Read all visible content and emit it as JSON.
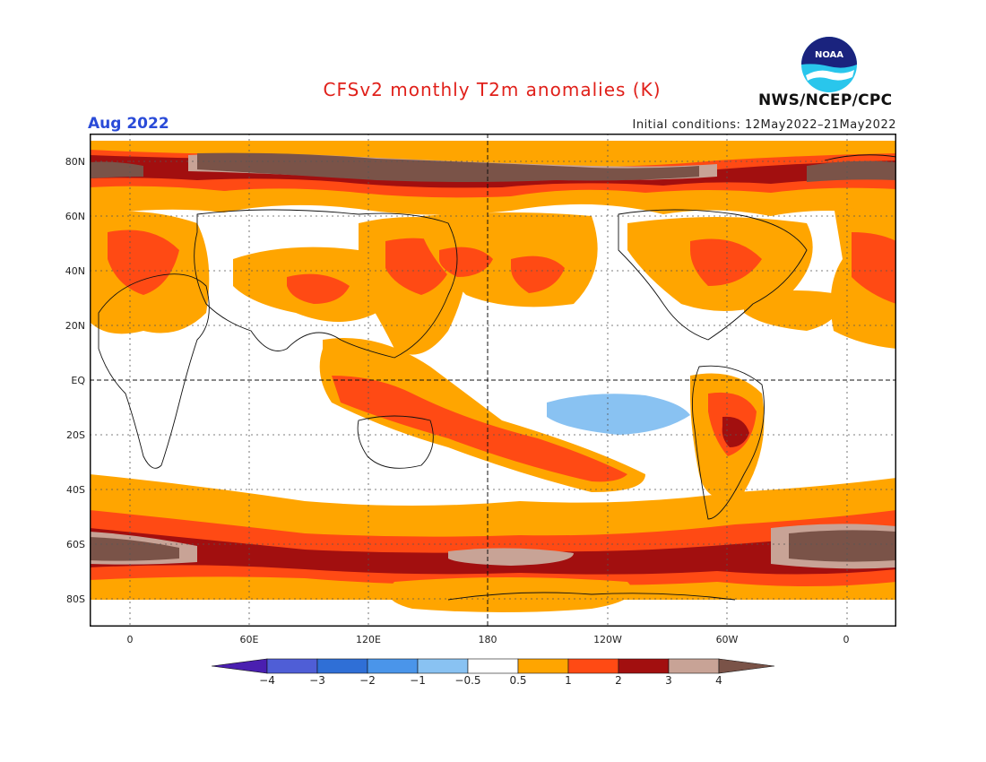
{
  "title": "CFSv2 monthly T2m anomalies (K)",
  "valid_month": "Aug 2022",
  "initial_conditions": "Initial conditions: 12May2022–21May2022",
  "agency": "NWS/NCEP/CPC",
  "logo": {
    "icon": "noaa-logo",
    "text": "NOAA"
  },
  "lat_labels": [
    "80N",
    "60N",
    "40N",
    "20N",
    "EQ",
    "20S",
    "40S",
    "60S",
    "80S"
  ],
  "lon_labels": [
    "0",
    "60E",
    "120E",
    "180",
    "120W",
    "60W",
    "0"
  ],
  "colorbar": {
    "labels": [
      "−4",
      "−3",
      "−2",
      "−1",
      "−0.5",
      "0.5",
      "1",
      "2",
      "3",
      "4"
    ],
    "colors": [
      "#4a1fb0",
      "#4f5ed6",
      "#2f6fd6",
      "#4a95ea",
      "#89c2f2",
      "#ffffff",
      "#ffa500",
      "#ff4a14",
      "#a20f0f",
      "#c8a396",
      "#7a5348"
    ]
  },
  "colors": {
    "title": "#e0201a",
    "month": "#2a4bd8",
    "weak_warm": "#ffa500",
    "warm": "#ff4a14",
    "hot": "#a20f0f",
    "very_hot": "#c8a396",
    "extreme": "#7a5348",
    "cool": "#89c2f2",
    "cold": "#4a95ea"
  }
}
